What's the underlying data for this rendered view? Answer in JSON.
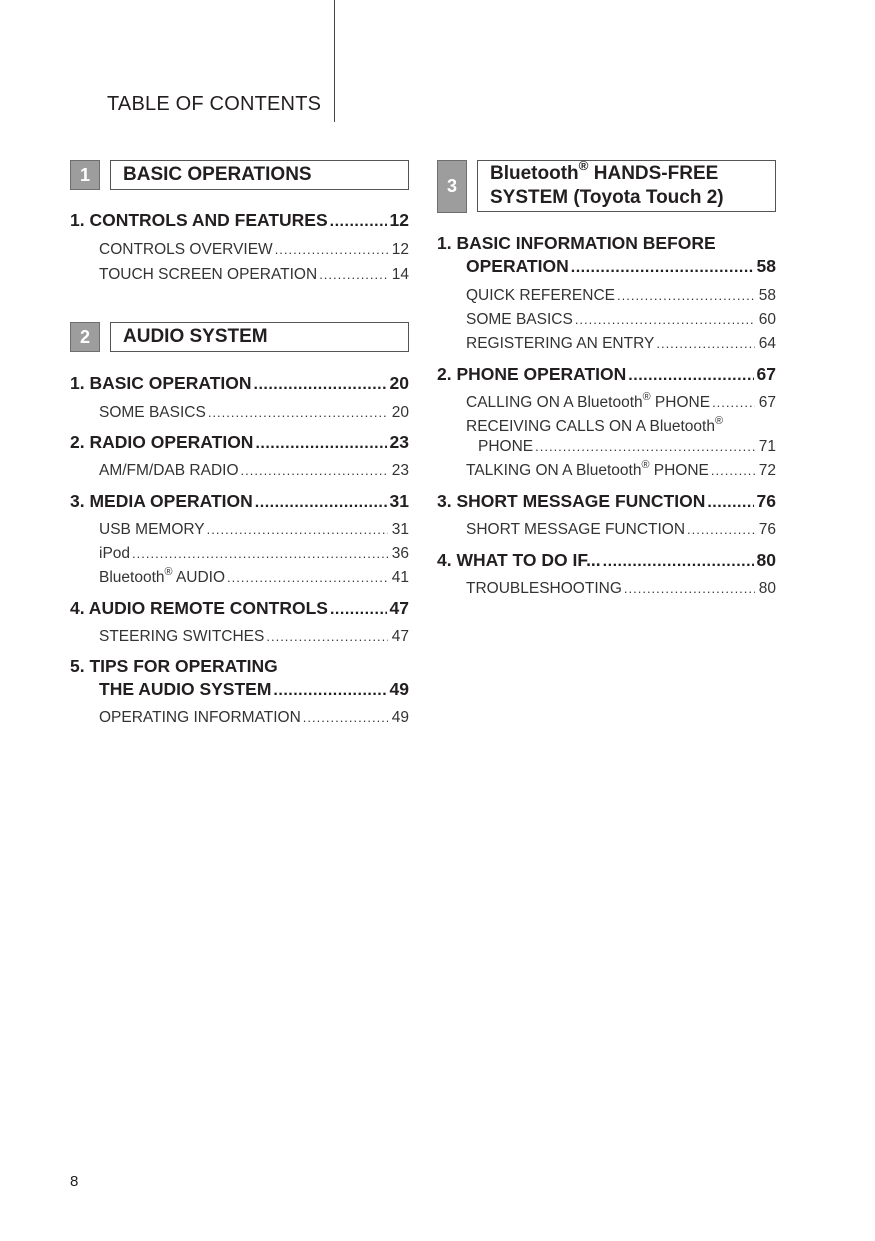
{
  "header": {
    "title": "TABLE OF CONTENTS"
  },
  "sections": [
    {
      "number": "1",
      "title": "BASIC OPERATIONS"
    },
    {
      "number": "2",
      "title": "AUDIO SYSTEM"
    },
    {
      "number": "3",
      "title_line1": "Bluetooth® HANDS-FREE",
      "title_line2": "SYSTEM (Toyota Touch 2)"
    }
  ],
  "s1": [
    {
      "label": "1. CONTROLS AND FEATURES",
      "page": "12"
    },
    {
      "label": "CONTROLS OVERVIEW",
      "page": "12"
    },
    {
      "label": "TOUCH SCREEN OPERATION",
      "page": "14"
    }
  ],
  "s2": [
    {
      "label": "1. BASIC OPERATION",
      "page": "20"
    },
    {
      "label": "SOME BASICS",
      "page": "20"
    },
    {
      "label": "2. RADIO OPERATION",
      "page": "23"
    },
    {
      "label": "AM/FM/DAB RADIO",
      "page": "23"
    },
    {
      "label": "3. MEDIA OPERATION",
      "page": "31"
    },
    {
      "label": "USB MEMORY",
      "page": "31"
    },
    {
      "label": "iPod",
      "page": "36"
    },
    {
      "label": "Bluetooth® AUDIO",
      "page": "41"
    },
    {
      "label": "4. AUDIO REMOTE CONTROLS",
      "page": "47"
    },
    {
      "label": "STEERING SWITCHES",
      "page": "47"
    },
    {
      "label": "5. TIPS FOR OPERATING",
      "label2": "THE AUDIO SYSTEM",
      "page": "49"
    },
    {
      "label": "OPERATING INFORMATION",
      "page": "49"
    }
  ],
  "s3": [
    {
      "label": "1. BASIC INFORMATION BEFORE",
      "label2": "OPERATION",
      "page": "58"
    },
    {
      "label": "QUICK REFERENCE",
      "page": "58"
    },
    {
      "label": "SOME BASICS",
      "page": "60"
    },
    {
      "label": "REGISTERING AN ENTRY",
      "page": "64"
    },
    {
      "label": "2. PHONE OPERATION",
      "page": "67"
    },
    {
      "label": "CALLING ON A Bluetooth® PHONE",
      "page": "67"
    },
    {
      "label": "RECEIVING CALLS ON A Bluetooth®",
      "label2": "PHONE",
      "page": "71"
    },
    {
      "label": "TALKING ON A Bluetooth® PHONE",
      "page": "72"
    },
    {
      "label": "3. SHORT MESSAGE FUNCTION",
      "page": "76"
    },
    {
      "label": "SHORT MESSAGE FUNCTION",
      "page": "76"
    },
    {
      "label": "4. WHAT TO DO IF...",
      "page": "80"
    },
    {
      "label": "TROUBLESHOOTING",
      "page": "80"
    }
  ],
  "footer": {
    "page_number": "8"
  }
}
